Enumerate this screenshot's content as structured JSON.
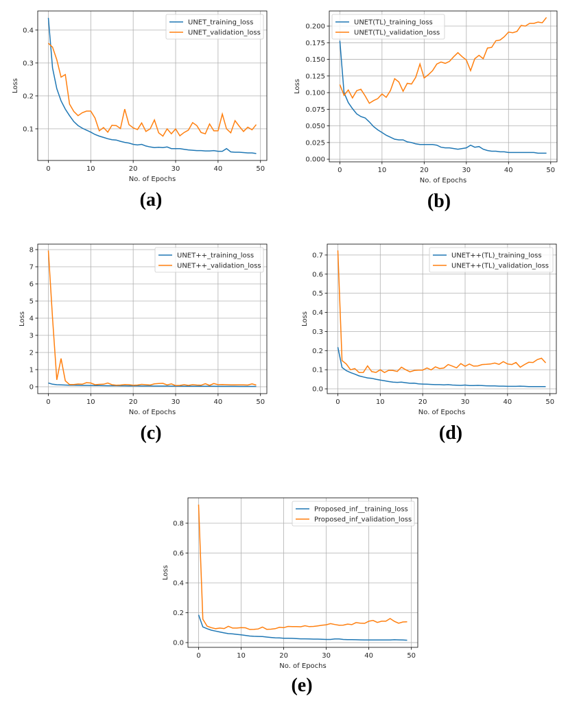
{
  "colors": {
    "training": "#1f77b4",
    "validation": "#ff7f0e",
    "grid": "#b0b0b0"
  },
  "chart_data": [
    {
      "type": "line",
      "caption": "(a)",
      "xlabel": "No. of Epochs",
      "ylabel": "Loss",
      "xlim": [
        -2.5,
        51.5
      ],
      "ylim": [
        0.004,
        0.458
      ],
      "xticks": [
        0,
        10,
        20,
        30,
        40,
        50
      ],
      "yticks": [
        0.1,
        0.2,
        0.3,
        0.4
      ],
      "ytick_decimals": 1,
      "grid": true,
      "legend": "top-right",
      "series": [
        {
          "name": "UNET_training_loss",
          "color": "#1f77b4",
          "values": [
            0.437,
            0.285,
            0.222,
            0.185,
            0.16,
            0.14,
            0.122,
            0.11,
            0.102,
            0.096,
            0.09,
            0.083,
            0.078,
            0.074,
            0.07,
            0.067,
            0.066,
            0.062,
            0.059,
            0.057,
            0.053,
            0.051,
            0.053,
            0.048,
            0.045,
            0.043,
            0.044,
            0.043,
            0.045,
            0.04,
            0.04,
            0.04,
            0.038,
            0.036,
            0.035,
            0.034,
            0.034,
            0.033,
            0.033,
            0.034,
            0.032,
            0.032,
            0.04,
            0.03,
            0.029,
            0.029,
            0.028,
            0.027,
            0.027,
            0.025
          ]
        },
        {
          "name": "UNET_validation_loss",
          "color": "#ff7f0e",
          "values": [
            0.36,
            0.348,
            0.31,
            0.257,
            0.265,
            0.175,
            0.153,
            0.14,
            0.149,
            0.154,
            0.154,
            0.133,
            0.094,
            0.104,
            0.09,
            0.111,
            0.11,
            0.101,
            0.16,
            0.113,
            0.103,
            0.098,
            0.118,
            0.092,
            0.1,
            0.127,
            0.088,
            0.078,
            0.1,
            0.085,
            0.1,
            0.079,
            0.089,
            0.096,
            0.119,
            0.11,
            0.089,
            0.085,
            0.115,
            0.094,
            0.094,
            0.145,
            0.1,
            0.088,
            0.125,
            0.108,
            0.092,
            0.105,
            0.097,
            0.113
          ]
        }
      ]
    },
    {
      "type": "line",
      "caption": "(b)",
      "xlabel": "No. of Epochs",
      "ylabel": "Loss",
      "xlim": [
        -2.5,
        51.5
      ],
      "ylim": [
        -0.004,
        0.2227
      ],
      "xticks": [
        0,
        10,
        20,
        30,
        40,
        50
      ],
      "yticks": [
        0,
        0.025,
        0.05,
        0.075,
        0.1,
        0.125,
        0.15,
        0.175,
        0.2
      ],
      "ytick_decimals": 3,
      "grid": true,
      "legend": "top-left",
      "series": [
        {
          "name": "UNET(TL)_training_loss",
          "color": "#1f77b4",
          "values": [
            0.178,
            0.1,
            0.085,
            0.076,
            0.068,
            0.064,
            0.062,
            0.056,
            0.049,
            0.044,
            0.04,
            0.036,
            0.033,
            0.03,
            0.029,
            0.029,
            0.026,
            0.025,
            0.023,
            0.022,
            0.022,
            0.022,
            0.022,
            0.021,
            0.018,
            0.017,
            0.017,
            0.016,
            0.015,
            0.016,
            0.017,
            0.021,
            0.018,
            0.019,
            0.015,
            0.013,
            0.012,
            0.012,
            0.011,
            0.011,
            0.01,
            0.01,
            0.01,
            0.01,
            0.01,
            0.01,
            0.01,
            0.009,
            0.009,
            0.009
          ]
        },
        {
          "name": "UNET(TL)_validation_loss",
          "color": "#ff7f0e",
          "values": [
            0.112,
            0.096,
            0.104,
            0.092,
            0.103,
            0.105,
            0.095,
            0.084,
            0.088,
            0.091,
            0.098,
            0.093,
            0.103,
            0.121,
            0.116,
            0.102,
            0.114,
            0.113,
            0.123,
            0.143,
            0.122,
            0.127,
            0.133,
            0.143,
            0.146,
            0.144,
            0.147,
            0.154,
            0.16,
            0.154,
            0.149,
            0.133,
            0.151,
            0.156,
            0.151,
            0.167,
            0.168,
            0.178,
            0.179,
            0.184,
            0.191,
            0.19,
            0.192,
            0.201,
            0.2,
            0.204,
            0.204,
            0.206,
            0.205,
            0.213
          ]
        }
      ]
    },
    {
      "type": "line",
      "caption": "(c)",
      "xlabel": "No. of Epochs",
      "ylabel": "Loss",
      "xlim": [
        -2.5,
        51.5
      ],
      "ylim": [
        -0.4,
        8.32
      ],
      "xticks": [
        0,
        10,
        20,
        30,
        40,
        50
      ],
      "yticks": [
        0,
        1,
        2,
        3,
        4,
        5,
        6,
        7,
        8
      ],
      "ytick_decimals": 0,
      "grid": true,
      "legend": "top-right",
      "series": [
        {
          "name": "UNET++_training_loss",
          "color": "#1f77b4",
          "values": [
            0.22,
            0.15,
            0.12,
            0.11,
            0.1,
            0.09,
            0.09,
            0.085,
            0.08,
            0.08,
            0.075,
            0.07,
            0.07,
            0.065,
            0.06,
            0.06,
            0.058,
            0.055,
            0.055,
            0.05,
            0.05,
            0.048,
            0.046,
            0.045,
            0.044,
            0.042,
            0.04,
            0.04,
            0.038,
            0.036,
            0.035,
            0.034,
            0.033,
            0.032,
            0.031,
            0.03,
            0.03,
            0.029,
            0.028,
            0.027,
            0.026,
            0.025,
            0.025,
            0.024,
            0.023,
            0.022,
            0.022,
            0.021,
            0.02,
            0.02
          ]
        },
        {
          "name": "UNET++_validation_loss",
          "color": "#ff7f0e",
          "values": [
            7.95,
            4.0,
            0.4,
            1.65,
            0.35,
            0.13,
            0.13,
            0.16,
            0.15,
            0.24,
            0.22,
            0.12,
            0.14,
            0.15,
            0.22,
            0.12,
            0.09,
            0.1,
            0.13,
            0.12,
            0.09,
            0.1,
            0.14,
            0.12,
            0.1,
            0.17,
            0.19,
            0.2,
            0.11,
            0.17,
            0.07,
            0.08,
            0.12,
            0.08,
            0.12,
            0.1,
            0.09,
            0.18,
            0.08,
            0.19,
            0.12,
            0.13,
            0.12,
            0.11,
            0.11,
            0.11,
            0.11,
            0.1,
            0.17,
            0.1
          ]
        }
      ]
    },
    {
      "type": "line",
      "caption": "(d)",
      "xlabel": "No. of Epochs",
      "ylabel": "Loss",
      "xlim": [
        -2.5,
        51.5
      ],
      "ylim": [
        -0.025,
        0.757
      ],
      "xticks": [
        0,
        10,
        20,
        30,
        40,
        50
      ],
      "yticks": [
        0,
        0.1,
        0.2,
        0.3,
        0.4,
        0.5,
        0.6,
        0.7
      ],
      "ytick_decimals": 1,
      "grid": true,
      "legend": "top-right",
      "series": [
        {
          "name": "UNET++(TL)_training_loss",
          "color": "#1f77b4",
          "values": [
            0.218,
            0.112,
            0.095,
            0.085,
            0.077,
            0.068,
            0.062,
            0.057,
            0.055,
            0.05,
            0.046,
            0.042,
            0.038,
            0.035,
            0.034,
            0.035,
            0.032,
            0.029,
            0.03,
            0.026,
            0.025,
            0.024,
            0.023,
            0.022,
            0.022,
            0.021,
            0.022,
            0.02,
            0.019,
            0.018,
            0.02,
            0.017,
            0.017,
            0.018,
            0.017,
            0.016,
            0.015,
            0.015,
            0.014,
            0.014,
            0.013,
            0.013,
            0.013,
            0.014,
            0.013,
            0.012,
            0.012,
            0.012,
            0.012,
            0.012
          ]
        },
        {
          "name": "UNET++(TL)_validation_loss",
          "color": "#ff7f0e",
          "values": [
            0.724,
            0.148,
            0.13,
            0.1,
            0.106,
            0.085,
            0.086,
            0.12,
            0.09,
            0.086,
            0.1,
            0.085,
            0.097,
            0.096,
            0.091,
            0.113,
            0.1,
            0.089,
            0.096,
            0.098,
            0.098,
            0.109,
            0.099,
            0.115,
            0.106,
            0.109,
            0.127,
            0.119,
            0.11,
            0.132,
            0.118,
            0.13,
            0.119,
            0.12,
            0.127,
            0.128,
            0.13,
            0.135,
            0.128,
            0.142,
            0.13,
            0.127,
            0.138,
            0.113,
            0.127,
            0.139,
            0.138,
            0.153,
            0.16,
            0.136
          ]
        }
      ]
    },
    {
      "type": "line",
      "caption": "(e)",
      "xlabel": "No. of Epochs",
      "ylabel": "Loss",
      "xlim": [
        -2.5,
        51.5
      ],
      "ylim": [
        -0.032,
        0.97
      ],
      "xticks": [
        0,
        10,
        20,
        30,
        40,
        50
      ],
      "yticks": [
        0,
        0.2,
        0.4,
        0.6,
        0.8
      ],
      "ytick_decimals": 1,
      "grid": true,
      "legend": "top-right",
      "series": [
        {
          "name": "Proposed_inf__training_loss",
          "color": "#1f77b4",
          "values": [
            0.186,
            0.105,
            0.093,
            0.083,
            0.077,
            0.071,
            0.065,
            0.06,
            0.058,
            0.055,
            0.052,
            0.048,
            0.044,
            0.042,
            0.041,
            0.04,
            0.037,
            0.034,
            0.032,
            0.031,
            0.029,
            0.029,
            0.028,
            0.027,
            0.025,
            0.025,
            0.024,
            0.023,
            0.023,
            0.022,
            0.021,
            0.021,
            0.024,
            0.024,
            0.021,
            0.02,
            0.02,
            0.019,
            0.018,
            0.017,
            0.017,
            0.017,
            0.017,
            0.017,
            0.017,
            0.017,
            0.019,
            0.018,
            0.017,
            0.016
          ]
        },
        {
          "name": "Proposed_inf_validation_loss",
          "color": "#ff7f0e",
          "values": [
            0.925,
            0.157,
            0.11,
            0.1,
            0.093,
            0.097,
            0.094,
            0.109,
            0.097,
            0.097,
            0.1,
            0.099,
            0.088,
            0.089,
            0.091,
            0.104,
            0.089,
            0.09,
            0.093,
            0.102,
            0.1,
            0.108,
            0.107,
            0.107,
            0.106,
            0.113,
            0.107,
            0.108,
            0.112,
            0.116,
            0.119,
            0.127,
            0.121,
            0.116,
            0.117,
            0.124,
            0.12,
            0.134,
            0.13,
            0.129,
            0.143,
            0.148,
            0.135,
            0.143,
            0.143,
            0.161,
            0.142,
            0.13,
            0.138,
            0.139
          ]
        }
      ]
    }
  ]
}
